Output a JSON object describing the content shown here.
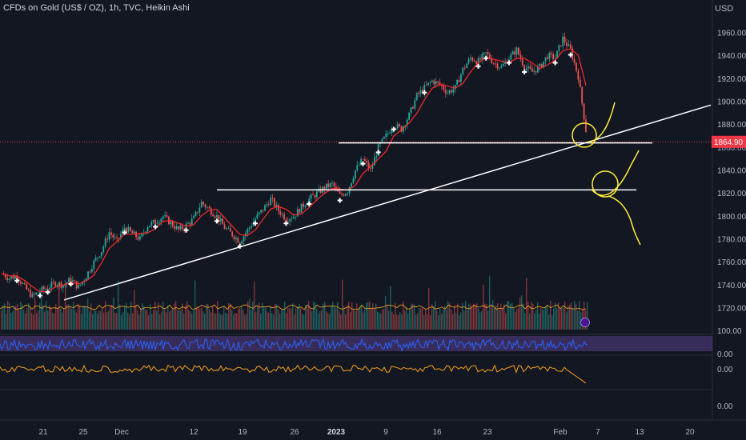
{
  "header": {
    "symbol_title": "CFDs on Gold (US$ / OZ), 1h, TVC, Heikin Ashi",
    "currency": "USD"
  },
  "price_badge": {
    "value": "1864.90",
    "color": "#f23645"
  },
  "colors": {
    "background": "#131722",
    "up": "#26a69a",
    "down": "#ef5350",
    "ma": "#ff2a2a",
    "drawing_line": "#ffffff",
    "annotation": "#ffeb3b",
    "rsi_line": "#2962ff",
    "rsi_band": "#7e57c2",
    "osc_line": "#f7a21b"
  },
  "chart_data": {
    "type": "line",
    "title": "CFDs on Gold (US$ / OZ), 1h, TVC, Heikin Ashi",
    "y_axis": {
      "range": [
        1700,
        1970
      ],
      "ticks": [
        1960,
        1940,
        1920,
        1900,
        1880,
        1860,
        1840,
        1820,
        1800,
        1780,
        1760,
        1740,
        1720
      ]
    },
    "x_axis": {
      "ticks": [
        {
          "label": "21",
          "bold": false
        },
        {
          "label": "25",
          "bold": false
        },
        {
          "label": "Dec",
          "bold": false
        },
        {
          "label": "12",
          "bold": false
        },
        {
          "label": "19",
          "bold": false
        },
        {
          "label": "26",
          "bold": false
        },
        {
          "label": "2023",
          "bold": true
        },
        {
          "label": "9",
          "bold": false
        },
        {
          "label": "16",
          "bold": false
        },
        {
          "label": "23",
          "bold": false
        },
        {
          "label": "Feb",
          "bold": false
        },
        {
          "label": "7",
          "bold": false
        },
        {
          "label": "13",
          "bold": false
        },
        {
          "label": "20",
          "bold": false
        }
      ]
    },
    "series": [
      {
        "values": [
          1750,
          1746,
          1748,
          1738,
          1730,
          1735,
          1738,
          1742,
          1740,
          1745,
          1738,
          1748,
          1760,
          1770,
          1786,
          1778,
          1790,
          1785,
          1780,
          1792,
          1795,
          1800,
          1794,
          1788,
          1792,
          1798,
          1812,
          1806,
          1800,
          1790,
          1784,
          1778,
          1788,
          1798,
          1806,
          1815,
          1805,
          1798,
          1800,
          1808,
          1815,
          1820,
          1825,
          1828,
          1818,
          1822,
          1840,
          1850,
          1840,
          1860,
          1870,
          1880,
          1876,
          1888,
          1905,
          1912,
          1918,
          1915,
          1908,
          1912,
          1928,
          1938,
          1935,
          1942,
          1934,
          1930,
          1938,
          1945,
          1930,
          1926,
          1930,
          1940,
          1938,
          1955,
          1945,
          1922,
          1875
        ]
      }
    ],
    "levels": [
      {
        "value": 1864.9,
        "label": "1864.90"
      },
      {
        "value": 1864
      },
      {
        "value": 1823
      }
    ],
    "trendline": {
      "from_value": 1727,
      "to_value": 1897
    },
    "panes": [
      {
        "name": "volume"
      },
      {
        "name": "rsi",
        "ticks": [
          "100.00",
          "0.00"
        ]
      },
      {
        "name": "oscillator",
        "ticks": [
          "0.00",
          "0.00"
        ]
      }
    ]
  }
}
